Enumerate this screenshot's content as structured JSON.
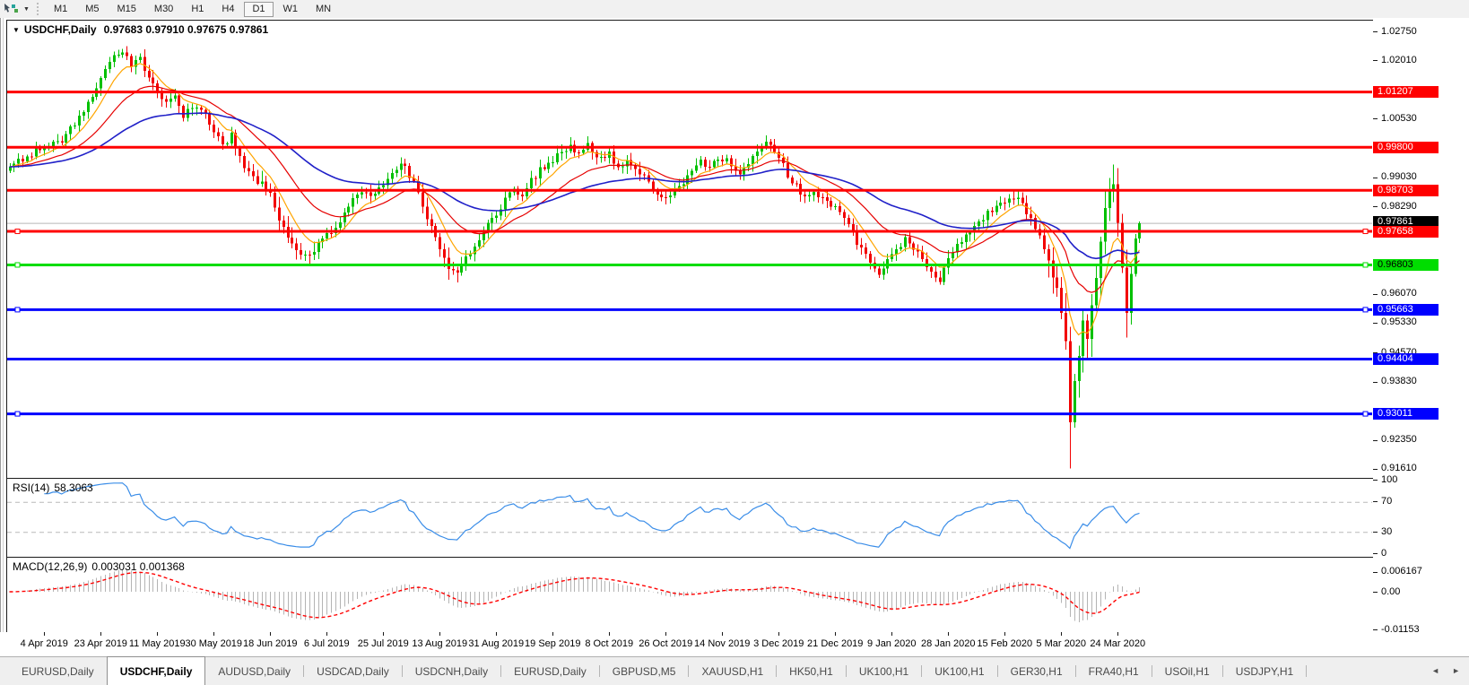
{
  "icons": {
    "dropdown_caret": "▼",
    "title_caret": "▼",
    "tab_scroll_left": "◄",
    "tab_scroll_right": "►"
  },
  "toolbar": {
    "timeframes": [
      "M1",
      "M5",
      "M15",
      "M30",
      "H1",
      "H4",
      "D1",
      "W1",
      "MN"
    ],
    "active_timeframe": "D1"
  },
  "chart": {
    "title_symbol": "USDCHF,Daily",
    "title_ohlc": "0.97683 0.97910 0.97675 0.97861"
  },
  "chart_data": {
    "type": "candlestick",
    "symbol": "USDCHF",
    "period": "Daily",
    "ohlc": {
      "open": 0.97683,
      "high": 0.9791,
      "low": 0.97675,
      "close": 0.97861
    },
    "current_price": {
      "label": "0.97861",
      "value": 0.97861,
      "line_color": "#b8b8b8",
      "badge_color": "#000000",
      "badge_text_color": "#ffffff"
    },
    "price_axis_ticks": [
      "1.02750",
      "1.02010",
      "1.00530",
      "0.99030",
      "0.98290",
      "0.97550",
      "0.96070",
      "0.95330",
      "0.94570",
      "0.93830",
      "0.92350",
      "0.91610"
    ],
    "levels": [
      {
        "label": "1.01207",
        "color": "#ff0000",
        "text_color": "#ffffff",
        "selected": false
      },
      {
        "label": "0.99800",
        "color": "#ff0000",
        "text_color": "#ffffff",
        "selected": false
      },
      {
        "label": "0.98703",
        "color": "#ff0000",
        "text_color": "#ffffff",
        "selected": false
      },
      {
        "label": "0.97658",
        "color": "#ff0000",
        "text_color": "#ffffff",
        "selected": true
      },
      {
        "label": "0.96803",
        "color": "#00dd00",
        "text_color": "#000000",
        "selected": true
      },
      {
        "label": "0.95663",
        "color": "#0000ff",
        "text_color": "#ffffff",
        "selected": true
      },
      {
        "label": "0.94404",
        "color": "#0000ff",
        "text_color": "#ffffff",
        "selected": false
      },
      {
        "label": "0.93011",
        "color": "#0000ff",
        "text_color": "#ffffff",
        "selected": true
      }
    ],
    "date_ticks": [
      "4 Apr 2019",
      "23 Apr 2019",
      "11 May 2019",
      "30 May 2019",
      "18 Jun 2019",
      "6 Jul 2019",
      "25 Jul 2019",
      "13 Aug 2019",
      "31 Aug 2019",
      "19 Sep 2019",
      "8 Oct 2019",
      "26 Oct 2019",
      "14 Nov 2019",
      "3 Dec 2019",
      "21 Dec 2019",
      "9 Jan 2020",
      "28 Jan 2020",
      "15 Feb 2020",
      "5 Mar 2020",
      "24 Mar 2020"
    ],
    "candles": {
      "count": 261,
      "up_color": "#00c000",
      "down_color": "#f20000",
      "close_keypoints": [
        [
          0,
          0.993
        ],
        [
          4,
          0.9958
        ],
        [
          8,
          0.9985
        ],
        [
          12,
          1.0
        ],
        [
          15,
          1.004
        ],
        [
          18,
          1.0095
        ],
        [
          21,
          1.016
        ],
        [
          24,
          1.0215
        ],
        [
          26,
          1.0226
        ],
        [
          28,
          1.019
        ],
        [
          30,
          1.0205
        ],
        [
          32,
          1.016
        ],
        [
          34,
          1.0125
        ],
        [
          36,
          1.009
        ],
        [
          38,
          1.0105
        ],
        [
          40,
          1.006
        ],
        [
          42,
          1.0078
        ],
        [
          44,
          1.008
        ],
        [
          47,
          1.002
        ],
        [
          49,
          0.9985
        ],
        [
          51,
          1.0008
        ],
        [
          53,
          0.995
        ],
        [
          55,
          0.9918
        ],
        [
          57,
          0.9895
        ],
        [
          60,
          0.9862
        ],
        [
          62,
          0.98
        ],
        [
          64,
          0.9745
        ],
        [
          66,
          0.9712
        ],
        [
          68,
          0.9698
        ],
        [
          70,
          0.9722
        ],
        [
          73,
          0.9755
        ],
        [
          75,
          0.9782
        ],
        [
          77,
          0.9812
        ],
        [
          79,
          0.9845
        ],
        [
          81,
          0.9868
        ],
        [
          83,
          0.9852
        ],
        [
          86,
          0.9885
        ],
        [
          88,
          0.9918
        ],
        [
          90,
          0.9942
        ],
        [
          92,
          0.9905
        ],
        [
          94,
          0.9868
        ],
        [
          96,
          0.98
        ],
        [
          99,
          0.9725
        ],
        [
          101,
          0.9678
        ],
        [
          103,
          0.9655
        ],
        [
          105,
          0.97
        ],
        [
          107,
          0.9732
        ],
        [
          109,
          0.977
        ],
        [
          112,
          0.981
        ],
        [
          114,
          0.9843
        ],
        [
          116,
          0.9872
        ],
        [
          118,
          0.9855
        ],
        [
          120,
          0.9895
        ],
        [
          122,
          0.9923
        ],
        [
          125,
          0.9945
        ],
        [
          127,
          0.9968
        ],
        [
          129,
          0.999
        ],
        [
          131,
          0.996
        ],
        [
          133,
          0.9983
        ],
        [
          135,
          0.995
        ],
        [
          138,
          0.9963
        ],
        [
          140,
          0.993
        ],
        [
          142,
          0.995
        ],
        [
          144,
          0.9925
        ],
        [
          146,
          0.99
        ],
        [
          148,
          0.9872
        ],
        [
          151,
          0.9855
        ],
        [
          153,
          0.9875
        ],
        [
          155,
          0.9892
        ],
        [
          157,
          0.992
        ],
        [
          159,
          0.9945
        ],
        [
          161,
          0.993
        ],
        [
          164,
          0.995
        ],
        [
          166,
          0.9935
        ],
        [
          168,
          0.991
        ],
        [
          170,
          0.9932
        ],
        [
          172,
          0.9975
        ],
        [
          174,
          1.0
        ],
        [
          177,
          0.9955
        ],
        [
          179,
          0.9905
        ],
        [
          181,
          0.988
        ],
        [
          183,
          0.9855
        ],
        [
          185,
          0.9873
        ],
        [
          187,
          0.9845
        ],
        [
          190,
          0.9825
        ],
        [
          192,
          0.9795
        ],
        [
          194,
          0.976
        ],
        [
          196,
          0.972
        ],
        [
          198,
          0.968
        ],
        [
          200,
          0.966
        ],
        [
          202,
          0.9695
        ],
        [
          203,
          0.9715
        ],
        [
          206,
          0.9745
        ],
        [
          208,
          0.9725
        ],
        [
          210,
          0.969
        ],
        [
          212,
          0.9662
        ],
        [
          214,
          0.964
        ],
        [
          215,
          0.9668
        ],
        [
          216,
          0.9705
        ],
        [
          218,
          0.9732
        ],
        [
          220,
          0.9762
        ],
        [
          223,
          0.9792
        ],
        [
          226,
          0.9822
        ],
        [
          229,
          0.984
        ],
        [
          231,
          0.9852
        ],
        [
          233,
          0.9835
        ],
        [
          235,
          0.98
        ],
        [
          237,
          0.9748
        ],
        [
          239,
          0.9692
        ],
        [
          241,
          0.962
        ],
        [
          242,
          0.9555
        ],
        [
          243,
          0.948
        ],
        [
          244,
          0.928
        ],
        [
          245,
          0.938
        ],
        [
          246,
          0.945
        ],
        [
          247,
          0.953
        ],
        [
          248,
          0.949
        ],
        [
          249,
          0.9575
        ],
        [
          250,
          0.9655
        ],
        [
          251,
          0.9735
        ],
        [
          252,
          0.982
        ],
        [
          253,
          0.988
        ],
        [
          254,
          0.9895
        ],
        [
          255,
          0.979
        ],
        [
          256,
          0.968
        ],
        [
          257,
          0.955
        ],
        [
          258,
          0.965
        ],
        [
          259,
          0.9745
        ],
        [
          260,
          0.97861
        ]
      ],
      "wick_overrides": [
        {
          "index": 244,
          "low": 0.9162
        },
        {
          "index": 253,
          "high": 0.9899
        },
        {
          "index": 257,
          "low": 0.9495
        },
        {
          "index": 103,
          "low": 0.9636
        },
        {
          "index": 26,
          "high": 1.0231
        }
      ],
      "volatility_ranges": [
        {
          "from": 239,
          "to": 258,
          "factor": 2.6
        },
        {
          "from": 58,
          "to": 70,
          "factor": 1.5
        },
        {
          "from": 95,
          "to": 105,
          "factor": 1.5
        }
      ]
    },
    "moving_averages": [
      {
        "type": "ema",
        "period": 8,
        "color": "#ffa500"
      },
      {
        "type": "ema",
        "period": 22,
        "color": "#e60000"
      },
      {
        "type": "ema",
        "period": 55,
        "color": "#2020c8"
      }
    ],
    "rsi": {
      "label": "RSI(14)",
      "display_value": "58.3063",
      "period": 14,
      "line_color": "#3a8de8",
      "level_lines": [
        70,
        30
      ],
      "axis_ticks": [
        "100",
        "70",
        "30",
        "0"
      ]
    },
    "macd": {
      "label": "MACD(12,26,9)",
      "display_values": "0.003031 0.001368",
      "fast": 12,
      "slow": 26,
      "signal": 9,
      "histogram_color": "#b4b4b4",
      "signal_color": "#ff0000",
      "axis_ticks": [
        "0.006167",
        "0.00",
        "-0.01153"
      ],
      "axis_max": 0.006167,
      "axis_min": -0.01153
    }
  },
  "tabs": {
    "items": [
      {
        "label": "EURUSD,Daily",
        "active": false
      },
      {
        "label": "USDCHF,Daily",
        "active": true
      },
      {
        "label": "AUDUSD,Daily",
        "active": false
      },
      {
        "label": "USDCAD,Daily",
        "active": false
      },
      {
        "label": "USDCNH,Daily",
        "active": false
      },
      {
        "label": "EURUSD,Daily",
        "active": false
      },
      {
        "label": "GBPUSD,M5",
        "active": false
      },
      {
        "label": "XAUUSD,H1",
        "active": false
      },
      {
        "label": "HK50,H1",
        "active": false
      },
      {
        "label": "UK100,H1",
        "active": false
      },
      {
        "label": "UK100,H1",
        "active": false
      },
      {
        "label": "GER30,H1",
        "active": false
      },
      {
        "label": "FRA40,H1",
        "active": false
      },
      {
        "label": "USOil,H1",
        "active": false
      },
      {
        "label": "USDJPY,H1",
        "active": false
      }
    ]
  }
}
